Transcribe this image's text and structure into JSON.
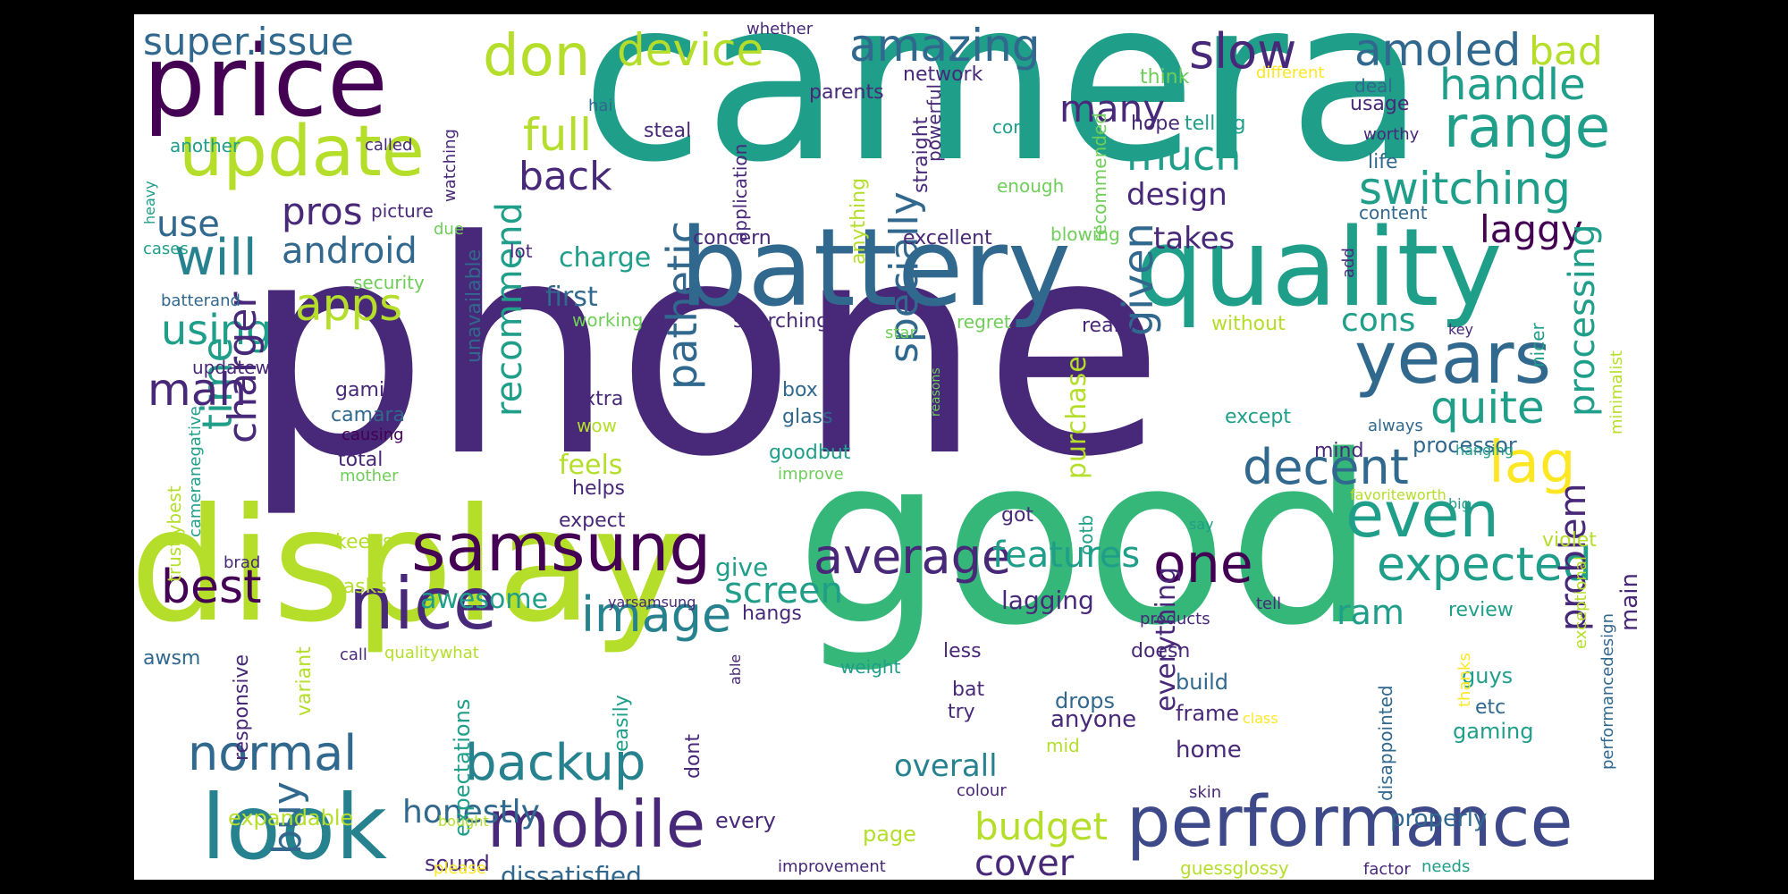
{
  "palette": {
    "dark_purple": "#440154",
    "indigo": "#482878",
    "blue": "#3e4989",
    "steel": "#31688e",
    "teal": "#26828e",
    "sea": "#1f9e89",
    "green": "#35b779",
    "lime": "#6ece58",
    "yellow_green": "#b5de2b",
    "yellow": "#fde725"
  },
  "words": [
    {
      "text": "phone",
      "color": "indigo"
    },
    {
      "text": "camera",
      "color": "sea"
    },
    {
      "text": "good",
      "color": "green"
    },
    {
      "text": "display",
      "color": "yellow_green"
    },
    {
      "text": "battery",
      "color": "steel"
    },
    {
      "text": "quality",
      "color": "sea"
    },
    {
      "text": "price",
      "color": "dark_purple"
    },
    {
      "text": "performance",
      "color": "blue"
    },
    {
      "text": "look",
      "color": "teal"
    },
    {
      "text": "update",
      "color": "yellow_green"
    },
    {
      "text": "samsung",
      "color": "dark_purple"
    },
    {
      "text": "nice",
      "color": "indigo"
    },
    {
      "text": "mobile",
      "color": "indigo"
    },
    {
      "text": "range",
      "color": "sea"
    },
    {
      "text": "years",
      "color": "steel"
    },
    {
      "text": "even",
      "color": "sea"
    },
    {
      "text": "don",
      "color": "yellow_green"
    },
    {
      "text": "device",
      "color": "yellow_green"
    },
    {
      "text": "amazing",
      "color": "steel"
    },
    {
      "text": "slow",
      "color": "indigo"
    },
    {
      "text": "amoled",
      "color": "steel"
    },
    {
      "text": "super.issue",
      "color": "steel"
    },
    {
      "text": "handle",
      "color": "sea"
    },
    {
      "text": "switching",
      "color": "sea"
    },
    {
      "text": "image",
      "color": "teal"
    },
    {
      "text": "average",
      "color": "indigo"
    },
    {
      "text": "expected",
      "color": "sea"
    },
    {
      "text": "decent",
      "color": "steel"
    },
    {
      "text": "quite",
      "color": "sea"
    },
    {
      "text": "lag",
      "color": "yellow"
    },
    {
      "text": "one",
      "color": "dark_purple"
    },
    {
      "text": "backup",
      "color": "teal"
    },
    {
      "text": "normal",
      "color": "steel"
    },
    {
      "text": "best",
      "color": "dark_purple"
    },
    {
      "text": "time",
      "color": "sea"
    },
    {
      "text": "will",
      "color": "teal"
    },
    {
      "text": "apps",
      "color": "yellow_green"
    },
    {
      "text": "full",
      "color": "yellow_green"
    },
    {
      "text": "back",
      "color": "indigo"
    },
    {
      "text": "mah",
      "color": "indigo"
    },
    {
      "text": "much",
      "color": "sea"
    },
    {
      "text": "many",
      "color": "indigo"
    },
    {
      "text": "bad",
      "color": "yellow_green"
    },
    {
      "text": "laggy",
      "color": "dark_purple"
    },
    {
      "text": "use",
      "color": "steel"
    },
    {
      "text": "pros",
      "color": "indigo"
    },
    {
      "text": "android",
      "color": "steel"
    },
    {
      "text": "using",
      "color": "sea"
    },
    {
      "text": "charger",
      "color": "indigo"
    },
    {
      "text": "pathetic",
      "color": "steel"
    },
    {
      "text": "recommend",
      "color": "sea"
    },
    {
      "text": "specially",
      "color": "steel"
    },
    {
      "text": "given",
      "color": "steel"
    },
    {
      "text": "processing",
      "color": "sea"
    },
    {
      "text": "features",
      "color": "sea"
    },
    {
      "text": "screen",
      "color": "sea"
    },
    {
      "text": "budget",
      "color": "yellow_green"
    },
    {
      "text": "cover",
      "color": "indigo"
    },
    {
      "text": "buy",
      "color": "steel"
    },
    {
      "text": "honestly",
      "color": "steel"
    },
    {
      "text": "problem",
      "color": "indigo"
    },
    {
      "text": "ram",
      "color": "sea"
    },
    {
      "text": "cons",
      "color": "sea"
    },
    {
      "text": "design",
      "color": "indigo"
    },
    {
      "text": "takes",
      "color": "indigo"
    },
    {
      "text": "overall",
      "color": "teal"
    },
    {
      "text": "first",
      "color": "steel"
    },
    {
      "text": "charge",
      "color": "sea"
    },
    {
      "text": "feels",
      "color": "yellow_green"
    },
    {
      "text": "awesome",
      "color": "sea"
    },
    {
      "text": "give",
      "color": "sea"
    },
    {
      "text": "lagging",
      "color": "indigo"
    },
    {
      "text": "purchase",
      "color": "yellow_green"
    },
    {
      "text": "everything",
      "color": "indigo"
    },
    {
      "text": "main",
      "color": "indigo"
    },
    {
      "text": "processor",
      "color": "steel"
    },
    {
      "text": "expectations",
      "color": "sea"
    },
    {
      "text": "dissatisfied",
      "color": "steel"
    },
    {
      "text": "every",
      "color": "indigo"
    },
    {
      "text": "properly",
      "color": "steel"
    },
    {
      "text": "page",
      "color": "yellow_green"
    },
    {
      "text": "expandable",
      "color": "yellow_green"
    },
    {
      "text": "sound",
      "color": "indigo"
    },
    {
      "text": "anyone",
      "color": "indigo"
    },
    {
      "text": "drops",
      "color": "steel"
    },
    {
      "text": "home",
      "color": "indigo"
    },
    {
      "text": "frame",
      "color": "indigo"
    },
    {
      "text": "build",
      "color": "steel"
    },
    {
      "text": "gaming",
      "color": "sea"
    },
    {
      "text": "guys",
      "color": "sea"
    },
    {
      "text": "etc",
      "color": "steel"
    },
    {
      "text": "review",
      "color": "sea"
    },
    {
      "text": "doesn",
      "color": "indigo"
    },
    {
      "text": "violet",
      "color": "yellow_green"
    },
    {
      "text": "mind",
      "color": "indigo"
    },
    {
      "text": "except",
      "color": "sea"
    },
    {
      "text": "hope",
      "color": "indigo"
    },
    {
      "text": "telling",
      "color": "sea"
    },
    {
      "text": "content",
      "color": "steel"
    },
    {
      "text": "life",
      "color": "steel"
    },
    {
      "text": "usage",
      "color": "indigo"
    },
    {
      "text": "deal",
      "color": "steel"
    },
    {
      "text": "worthy",
      "color": "indigo"
    },
    {
      "text": "network",
      "color": "indigo"
    },
    {
      "text": "parents",
      "color": "indigo"
    },
    {
      "text": "whether",
      "color": "indigo"
    },
    {
      "text": "think",
      "color": "lime"
    },
    {
      "text": "different",
      "color": "yellow"
    },
    {
      "text": "core",
      "color": "sea"
    },
    {
      "text": "enough",
      "color": "lime"
    },
    {
      "text": "excellent",
      "color": "indigo"
    },
    {
      "text": "blowing",
      "color": "lime"
    },
    {
      "text": "concern",
      "color": "indigo"
    },
    {
      "text": "searching",
      "color": "indigo"
    },
    {
      "text": "really",
      "color": "indigo"
    },
    {
      "text": "without",
      "color": "yellow_green"
    },
    {
      "text": "regret",
      "color": "lime"
    },
    {
      "text": "star",
      "color": "lime"
    },
    {
      "text": "steal",
      "color": "indigo"
    },
    {
      "text": "working",
      "color": "lime"
    },
    {
      "text": "security",
      "color": "lime"
    },
    {
      "text": "lot",
      "color": "indigo"
    },
    {
      "text": "picture",
      "color": "indigo"
    },
    {
      "text": "due",
      "color": "lime"
    },
    {
      "text": "cases",
      "color": "sea"
    },
    {
      "text": "batterand",
      "color": "steel"
    },
    {
      "text": "updatewe",
      "color": "indigo"
    },
    {
      "text": "another",
      "color": "sea"
    },
    {
      "text": "called",
      "color": "indigo"
    },
    {
      "text": "hai",
      "color": "steel"
    },
    {
      "text": "heavy",
      "color": "sea"
    },
    {
      "text": "watching",
      "color": "indigo"
    },
    {
      "text": "application",
      "color": "indigo"
    },
    {
      "text": "anything",
      "color": "yellow_green"
    },
    {
      "text": "straight",
      "color": "indigo"
    },
    {
      "text": "powerful",
      "color": "indigo"
    },
    {
      "text": "recommended",
      "color": "lime"
    },
    {
      "text": "add",
      "color": "indigo"
    },
    {
      "text": "key",
      "color": "indigo"
    },
    {
      "text": "nicer",
      "color": "sea"
    },
    {
      "text": "minimalist",
      "color": "yellow_green"
    },
    {
      "text": "always",
      "color": "steel"
    },
    {
      "text": "hanging",
      "color": "sea"
    },
    {
      "text": "favoriteworth",
      "color": "yellow_green"
    },
    {
      "text": "big",
      "color": "sea"
    },
    {
      "text": "say",
      "color": "sea"
    },
    {
      "text": "gamin",
      "color": "indigo"
    },
    {
      "text": "camara",
      "color": "steel"
    },
    {
      "text": "causing",
      "color": "dark_purple"
    },
    {
      "text": "total",
      "color": "indigo"
    },
    {
      "text": "mother",
      "color": "lime"
    },
    {
      "text": "extra",
      "color": "indigo"
    },
    {
      "text": "wow",
      "color": "yellow_green"
    },
    {
      "text": "box",
      "color": "steel"
    },
    {
      "text": "glass",
      "color": "steel"
    },
    {
      "text": "goodbut",
      "color": "sea"
    },
    {
      "text": "improve",
      "color": "lime"
    },
    {
      "text": "helps",
      "color": "indigo"
    },
    {
      "text": "expect",
      "color": "indigo"
    },
    {
      "text": "got",
      "color": "indigo"
    },
    {
      "text": "ootb",
      "color": "sea"
    },
    {
      "text": "keeps",
      "color": "yellow_green"
    },
    {
      "text": "tasks",
      "color": "yellow_green"
    },
    {
      "text": "brad",
      "color": "indigo"
    },
    {
      "text": "yarsamsung",
      "color": "indigo"
    },
    {
      "text": "hangs",
      "color": "indigo"
    },
    {
      "text": "tell",
      "color": "indigo"
    },
    {
      "text": "products",
      "color": "indigo"
    },
    {
      "text": "awsm",
      "color": "steel"
    },
    {
      "text": "call",
      "color": "indigo"
    },
    {
      "text": "qualitywhat",
      "color": "yellow_green"
    },
    {
      "text": "able",
      "color": "indigo"
    },
    {
      "text": "weight",
      "color": "sea"
    },
    {
      "text": "less",
      "color": "indigo"
    },
    {
      "text": "bat",
      "color": "indigo"
    },
    {
      "text": "try",
      "color": "indigo"
    },
    {
      "text": "mid",
      "color": "yellow_green"
    },
    {
      "text": "class",
      "color": "yellow"
    },
    {
      "text": "colour",
      "color": "indigo"
    },
    {
      "text": "skin",
      "color": "indigo"
    },
    {
      "text": "bought",
      "color": "yellow_green"
    },
    {
      "text": "please",
      "color": "yellow"
    },
    {
      "text": "improvement",
      "color": "indigo"
    },
    {
      "text": "guessglossy",
      "color": "yellow_green"
    },
    {
      "text": "factor",
      "color": "indigo"
    },
    {
      "text": "needs",
      "color": "sea"
    },
    {
      "text": "trustlybest",
      "color": "yellow_green"
    },
    {
      "text": "cameranegative",
      "color": "sea"
    },
    {
      "text": "responsive",
      "color": "indigo"
    },
    {
      "text": "variant",
      "color": "yellow_green"
    },
    {
      "text": "easily",
      "color": "sea"
    },
    {
      "text": "unavailable",
      "color": "steel"
    },
    {
      "text": "dont",
      "color": "indigo"
    },
    {
      "text": "disappointed",
      "color": "steel"
    },
    {
      "text": "thanks",
      "color": "yellow"
    },
    {
      "text": "exceptional",
      "color": "yellow_green"
    },
    {
      "text": "performancedesign",
      "color": "steel"
    },
    {
      "text": "reasons",
      "color": "lime"
    }
  ]
}
